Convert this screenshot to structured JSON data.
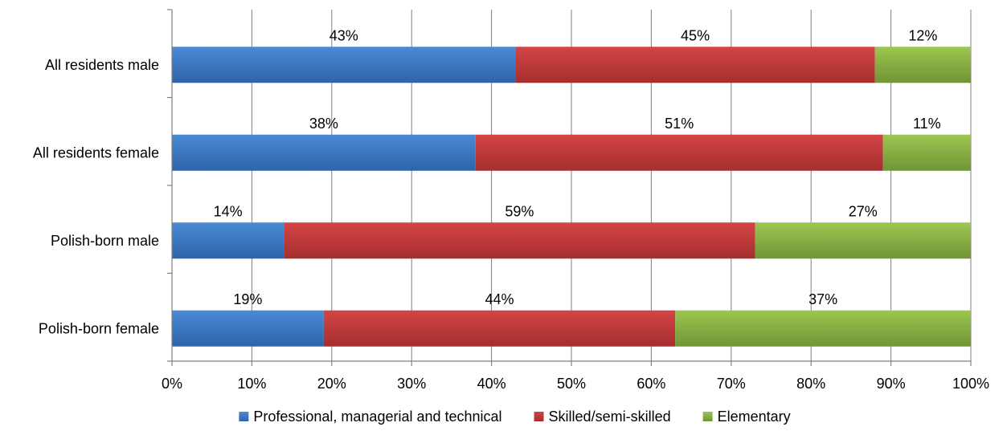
{
  "chart_data": {
    "type": "bar",
    "orientation": "horizontal",
    "stacked": "percent",
    "categories": [
      "All residents male",
      "All residents female",
      "Polish-born male",
      "Polish-born female"
    ],
    "series": [
      {
        "name": "Professional, managerial and technical",
        "values": [
          43,
          38,
          14,
          19
        ],
        "labels": [
          "43%",
          "38%",
          "14%",
          "19%"
        ],
        "color": "#3F7CC8"
      },
      {
        "name": "Skilled/semi-skilled",
        "values": [
          45,
          51,
          59,
          44
        ],
        "labels": [
          "45%",
          "51%",
          "59%",
          "44%"
        ],
        "color": "#C43A3A"
      },
      {
        "name": "Elementary",
        "values": [
          12,
          11,
          27,
          37
        ],
        "labels": [
          "12%",
          "11%",
          "27%",
          "37%"
        ],
        "color": "#8CB545"
      }
    ],
    "xlim": [
      0,
      100
    ],
    "xticks": [
      "0%",
      "10%",
      "20%",
      "30%",
      "40%",
      "50%",
      "60%",
      "70%",
      "80%",
      "90%",
      "100%"
    ],
    "grid": true,
    "legend_position": "bottom",
    "title": "",
    "xlabel": "",
    "ylabel": ""
  }
}
